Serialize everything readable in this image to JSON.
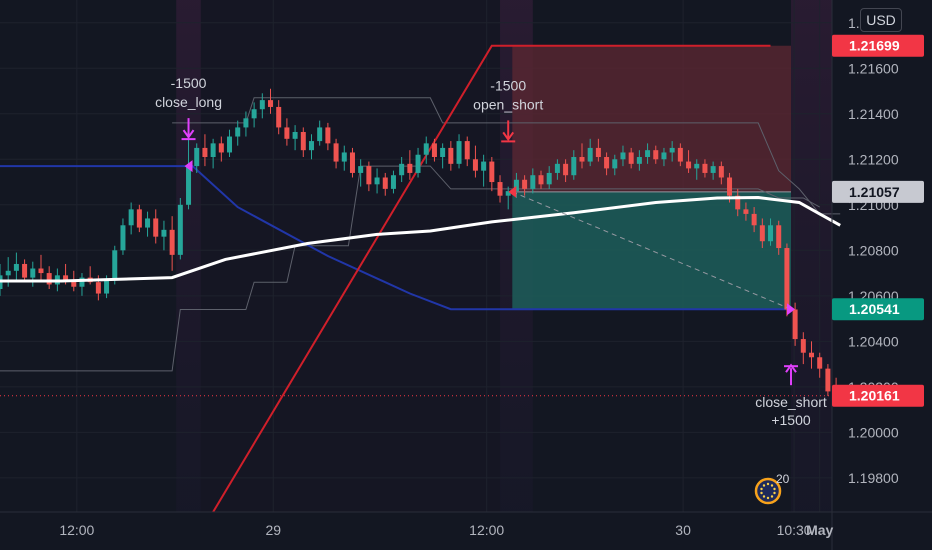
{
  "currency": "USD",
  "badge_count": "20",
  "chart_data": {
    "type": "candlestick",
    "symbol_currency": "USD",
    "y_range": [
      1.1965,
      1.219
    ],
    "y_ticks": [
      1.198,
      1.2,
      1.202,
      1.204,
      1.206,
      1.208,
      1.21,
      1.212,
      1.214,
      1.216,
      1.218
    ],
    "y_tick_labels": [
      "1.19800",
      "1.20000",
      "1.20200",
      "1.20400",
      "1.20600",
      "1.20800",
      "1.21000",
      "1.21200",
      "1.21400",
      "1.21600",
      "1.21800"
    ],
    "x_range": [
      0,
      2.03
    ],
    "x_ticks": [
      {
        "x": 0.1875,
        "label": "12:00"
      },
      {
        "x": 0.6667,
        "label": "29"
      },
      {
        "x": 1.1875,
        "label": "12:00"
      },
      {
        "x": 1.6667,
        "label": "30"
      },
      {
        "x": 1.9375,
        "label": "10:30"
      },
      {
        "x": 2.0,
        "label": "May"
      }
    ],
    "price_labels": [
      {
        "value": 1.21699,
        "label": "1.21699",
        "color": "#f23645",
        "text_color": "#ffffff"
      },
      {
        "value": 1.21057,
        "label": "1.21057",
        "color": "#c7c9d1",
        "text_color": "#131722"
      },
      {
        "value": 1.20541,
        "label": "1.20541",
        "color": "#089981",
        "text_color": "#ffffff"
      },
      {
        "value": 1.20161,
        "label": "1.20161",
        "color": "#f23645",
        "text_color": "#ffffff"
      }
    ],
    "current_price": 1.20161,
    "position_box": {
      "x_start": 1.25,
      "x_end": 1.93,
      "entry": 1.21057,
      "stop": 1.21699,
      "target": 1.20541,
      "profit_color": "#1d5e5a",
      "loss_color": "#5a2732"
    },
    "moving_average": {
      "color": "#ffffff",
      "points": [
        [
          0.0,
          1.20665
        ],
        [
          0.15,
          1.20665
        ],
        [
          0.42,
          1.2068
        ],
        [
          0.55,
          1.2076
        ],
        [
          0.75,
          1.2083
        ],
        [
          0.92,
          1.2087
        ],
        [
          1.05,
          1.20885
        ],
        [
          1.2,
          1.20925
        ],
        [
          1.4,
          1.20965
        ],
        [
          1.6,
          1.2101
        ],
        [
          1.75,
          1.2103
        ],
        [
          1.85,
          1.21032
        ],
        [
          1.95,
          1.2101
        ],
        [
          2.0,
          1.2096
        ],
        [
          2.05,
          1.2091
        ]
      ]
    },
    "blue_channel": {
      "color": "#2136a8",
      "points": [
        [
          0.0,
          1.2117
        ],
        [
          0.47,
          1.2117
        ],
        [
          0.58,
          1.2099
        ],
        [
          0.8,
          1.20775
        ],
        [
          1.0,
          1.2061
        ],
        [
          1.1,
          1.20541
        ],
        [
          1.93,
          1.20541
        ]
      ]
    },
    "red_channel": {
      "color": "#d01f2a",
      "points": [
        [
          0.52,
          1.1965
        ],
        [
          1.2,
          1.21699
        ],
        [
          1.88,
          1.21699
        ]
      ]
    },
    "upper_band": {
      "color": "#5d606b",
      "points": [
        [
          0.42,
          1.2136
        ],
        [
          0.6,
          1.2136
        ],
        [
          0.62,
          1.2147
        ],
        [
          1.05,
          1.2147
        ],
        [
          1.08,
          1.2136
        ],
        [
          1.85,
          1.2136
        ],
        [
          1.9,
          1.2115
        ],
        [
          1.95,
          1.2107
        ],
        [
          2.0,
          1.2096
        ],
        [
          2.05,
          1.2096
        ]
      ]
    },
    "lower_band": {
      "color": "#5d606b",
      "points": [
        [
          0.0,
          1.2027
        ],
        [
          0.42,
          1.2027
        ],
        [
          0.44,
          1.2054
        ],
        [
          0.6,
          1.2054
        ],
        [
          0.62,
          1.2066
        ],
        [
          0.7,
          1.2066
        ],
        [
          0.72,
          1.2082
        ],
        [
          0.85,
          1.2082
        ],
        [
          0.88,
          1.2117
        ],
        [
          1.05,
          1.2117
        ],
        [
          1.1,
          1.2107
        ],
        [
          1.85,
          1.2107
        ],
        [
          1.9,
          1.2103
        ],
        [
          1.96,
          1.2103
        ],
        [
          2.0,
          1.2099
        ]
      ]
    },
    "trade_arrow": {
      "from": [
        1.25,
        1.21057
      ],
      "to": [
        1.93,
        1.20541
      ],
      "color": "#9598a1"
    },
    "annotations": [
      {
        "text_top": "-1500",
        "text_bottom": "close_long",
        "x": 0.46,
        "y": 1.2117,
        "arrow": "down",
        "color": "#e040fb"
      },
      {
        "text_top": "-1500",
        "text_bottom": "open_short",
        "x": 1.24,
        "y": 1.2116,
        "arrow": "down",
        "color": "#f23645"
      },
      {
        "text_top": "close_short",
        "text_bottom": "+1500",
        "x": 1.93,
        "y": 1.2026,
        "arrow": "up",
        "color": "#e040fb"
      }
    ],
    "candles": [
      [
        0.0,
        1.2063,
        1.2074,
        1.206,
        1.2069
      ],
      [
        0.02,
        1.2069,
        1.2077,
        1.2064,
        1.2071
      ],
      [
        0.04,
        1.2071,
        1.2079,
        1.2067,
        1.2074
      ],
      [
        0.06,
        1.2074,
        1.2076,
        1.2066,
        1.2068
      ],
      [
        0.08,
        1.2068,
        1.2075,
        1.2064,
        1.2072
      ],
      [
        0.1,
        1.2072,
        1.2078,
        1.2067,
        1.207
      ],
      [
        0.12,
        1.207,
        1.2073,
        1.2063,
        1.2065
      ],
      [
        0.14,
        1.2065,
        1.2072,
        1.2062,
        1.2069
      ],
      [
        0.16,
        1.2069,
        1.2074,
        1.2065,
        1.2067
      ],
      [
        0.18,
        1.2067,
        1.2071,
        1.2062,
        1.2064
      ],
      [
        0.2,
        1.2064,
        1.207,
        1.206,
        1.2068
      ],
      [
        0.22,
        1.2068,
        1.2073,
        1.2065,
        1.2066
      ],
      [
        0.24,
        1.2066,
        1.2069,
        1.2058,
        1.2061
      ],
      [
        0.26,
        1.2061,
        1.2069,
        1.2059,
        1.2067
      ],
      [
        0.28,
        1.2067,
        1.2082,
        1.2065,
        1.208
      ],
      [
        0.3,
        1.208,
        1.2094,
        1.2078,
        1.2091
      ],
      [
        0.32,
        1.2091,
        1.2101,
        1.2087,
        1.2098
      ],
      [
        0.34,
        1.2098,
        1.21,
        1.2088,
        1.209
      ],
      [
        0.36,
        1.209,
        1.2097,
        1.2086,
        1.2094
      ],
      [
        0.38,
        1.2094,
        1.2098,
        1.2083,
        1.2086
      ],
      [
        0.4,
        1.2086,
        1.2093,
        1.208,
        1.2089
      ],
      [
        0.42,
        1.2089,
        1.2095,
        1.2071,
        1.2078
      ],
      [
        0.44,
        1.2078,
        1.2103,
        1.2076,
        1.21
      ],
      [
        0.46,
        1.21,
        1.2136,
        1.2098,
        1.2117
      ],
      [
        0.48,
        1.2117,
        1.2127,
        1.2114,
        1.2125
      ],
      [
        0.5,
        1.2125,
        1.2131,
        1.2117,
        1.2121
      ],
      [
        0.52,
        1.2121,
        1.2129,
        1.2116,
        1.2127
      ],
      [
        0.54,
        1.2127,
        1.213,
        1.2119,
        1.2123
      ],
      [
        0.56,
        1.2123,
        1.2133,
        1.2121,
        1.213
      ],
      [
        0.58,
        1.213,
        1.2137,
        1.2126,
        1.2134
      ],
      [
        0.6,
        1.2134,
        1.2141,
        1.213,
        1.2138
      ],
      [
        0.62,
        1.2138,
        1.2145,
        1.2134,
        1.2142
      ],
      [
        0.64,
        1.2142,
        1.2149,
        1.2138,
        1.2146
      ],
      [
        0.66,
        1.2146,
        1.2151,
        1.214,
        1.2143
      ],
      [
        0.68,
        1.2143,
        1.2146,
        1.2131,
        1.2134
      ],
      [
        0.7,
        1.2134,
        1.2138,
        1.2126,
        1.2129
      ],
      [
        0.72,
        1.2129,
        1.2135,
        1.2124,
        1.2132
      ],
      [
        0.74,
        1.2132,
        1.2134,
        1.2121,
        1.2124
      ],
      [
        0.76,
        1.2124,
        1.2131,
        1.212,
        1.2128
      ],
      [
        0.78,
        1.2128,
        1.2137,
        1.2126,
        1.2134
      ],
      [
        0.8,
        1.2134,
        1.2136,
        1.2124,
        1.2127
      ],
      [
        0.82,
        1.2127,
        1.2129,
        1.2116,
        1.2119
      ],
      [
        0.84,
        1.2119,
        1.2126,
        1.2115,
        1.2123
      ],
      [
        0.86,
        1.2123,
        1.2125,
        1.2112,
        1.2114
      ],
      [
        0.88,
        1.2114,
        1.212,
        1.2108,
        1.2117
      ],
      [
        0.9,
        1.2117,
        1.2119,
        1.2106,
        1.2109
      ],
      [
        0.92,
        1.2109,
        1.2116,
        1.2105,
        1.2112
      ],
      [
        0.94,
        1.2112,
        1.2114,
        1.2104,
        1.2107
      ],
      [
        0.96,
        1.2107,
        1.2115,
        1.2105,
        1.2113
      ],
      [
        0.98,
        1.2113,
        1.2121,
        1.211,
        1.2118
      ],
      [
        1.0,
        1.2118,
        1.2124,
        1.2111,
        1.2114
      ],
      [
        1.02,
        1.2114,
        1.2125,
        1.2112,
        1.2122
      ],
      [
        1.04,
        1.2122,
        1.213,
        1.2118,
        1.2127
      ],
      [
        1.06,
        1.2127,
        1.2129,
        1.2119,
        1.2121
      ],
      [
        1.08,
        1.2121,
        1.2127,
        1.2116,
        1.2125
      ],
      [
        1.1,
        1.2125,
        1.2128,
        1.2115,
        1.2118
      ],
      [
        1.12,
        1.2118,
        1.2131,
        1.2116,
        1.2128
      ],
      [
        1.14,
        1.2128,
        1.213,
        1.2117,
        1.212
      ],
      [
        1.16,
        1.212,
        1.2126,
        1.2112,
        1.2115
      ],
      [
        1.18,
        1.2115,
        1.2122,
        1.2108,
        1.2119
      ],
      [
        1.2,
        1.2119,
        1.2121,
        1.2106,
        1.211
      ],
      [
        1.22,
        1.211,
        1.2113,
        1.2101,
        1.2104
      ],
      [
        1.24,
        1.2104,
        1.2108,
        1.2098,
        1.2106
      ],
      [
        1.26,
        1.2106,
        1.2114,
        1.2103,
        1.2111
      ],
      [
        1.28,
        1.2111,
        1.2113,
        1.2104,
        1.2107
      ],
      [
        1.3,
        1.2107,
        1.2116,
        1.2105,
        1.2113
      ],
      [
        1.32,
        1.2113,
        1.2115,
        1.2107,
        1.2109
      ],
      [
        1.34,
        1.2109,
        1.2117,
        1.2107,
        1.2114
      ],
      [
        1.36,
        1.2114,
        1.212,
        1.2111,
        1.2118
      ],
      [
        1.38,
        1.2118,
        1.212,
        1.211,
        1.2113
      ],
      [
        1.4,
        1.2113,
        1.2124,
        1.2111,
        1.2121
      ],
      [
        1.42,
        1.2121,
        1.2127,
        1.2116,
        1.2119
      ],
      [
        1.44,
        1.2119,
        1.2129,
        1.2117,
        1.2125
      ],
      [
        1.46,
        1.2125,
        1.2129,
        1.2119,
        1.2121
      ],
      [
        1.48,
        1.2121,
        1.2123,
        1.2113,
        1.2116
      ],
      [
        1.5,
        1.2116,
        1.2122,
        1.2113,
        1.212
      ],
      [
        1.52,
        1.212,
        1.2126,
        1.2117,
        1.2123
      ],
      [
        1.54,
        1.2123,
        1.2125,
        1.2116,
        1.2118
      ],
      [
        1.56,
        1.2118,
        1.2124,
        1.2115,
        1.2121
      ],
      [
        1.58,
        1.2121,
        1.2127,
        1.2118,
        1.2124
      ],
      [
        1.6,
        1.2124,
        1.2126,
        1.2118,
        1.212
      ],
      [
        1.62,
        1.212,
        1.2125,
        1.2117,
        1.2123
      ],
      [
        1.64,
        1.2123,
        1.2128,
        1.2119,
        1.2125
      ],
      [
        1.66,
        1.2125,
        1.2127,
        1.2117,
        1.2119
      ],
      [
        1.68,
        1.2119,
        1.2124,
        1.2114,
        1.2116
      ],
      [
        1.7,
        1.2116,
        1.212,
        1.2111,
        1.2118
      ],
      [
        1.72,
        1.2118,
        1.212,
        1.2112,
        1.2114
      ],
      [
        1.74,
        1.2114,
        1.2119,
        1.2111,
        1.2117
      ],
      [
        1.76,
        1.2117,
        1.2119,
        1.2109,
        1.2112
      ],
      [
        1.78,
        1.2112,
        1.2114,
        1.2101,
        1.2104
      ],
      [
        1.8,
        1.2104,
        1.2107,
        1.2095,
        1.2098
      ],
      [
        1.82,
        1.2098,
        1.2101,
        1.2093,
        1.2096
      ],
      [
        1.84,
        1.2096,
        1.2099,
        1.2088,
        1.2091
      ],
      [
        1.86,
        1.2091,
        1.2094,
        1.2081,
        1.2084
      ],
      [
        1.88,
        1.2084,
        1.2094,
        1.2082,
        1.2091
      ],
      [
        1.9,
        1.2091,
        1.2093,
        1.2078,
        1.2081
      ],
      [
        1.92,
        1.2081,
        1.2083,
        1.2051,
        1.2054
      ],
      [
        1.94,
        1.2054,
        1.2057,
        1.2038,
        1.2041
      ],
      [
        1.96,
        1.2041,
        1.2044,
        1.203,
        1.2035
      ],
      [
        1.98,
        1.2035,
        1.204,
        1.2028,
        1.2033
      ],
      [
        2.0,
        1.2033,
        1.2035,
        1.2024,
        1.2028
      ],
      [
        2.02,
        1.2028,
        1.203,
        1.2016,
        1.2018
      ],
      [
        2.04,
        1.2018,
        1.2024,
        1.2014,
        1.2016
      ]
    ]
  }
}
